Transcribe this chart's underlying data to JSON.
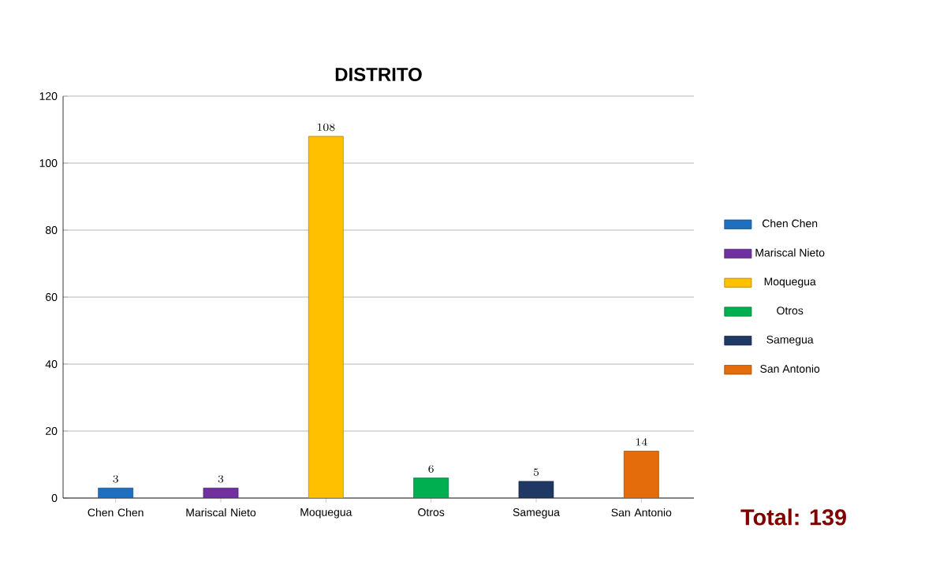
{
  "chart_data": {
    "type": "bar",
    "title": "DISTRITO",
    "categories": [
      "Chen Chen",
      "Mariscal Nieto",
      "Moquegua",
      "Otros",
      "Samegua",
      "San Antonio"
    ],
    "series": [
      {
        "name": "Chen Chen",
        "color": "#1f6fc0",
        "values": [
          3,
          null,
          null,
          null,
          null,
          null
        ]
      },
      {
        "name": "Mariscal Nieto",
        "color": "#7030a0",
        "values": [
          null,
          3,
          null,
          null,
          null,
          null
        ]
      },
      {
        "name": "Moquegua",
        "color": "#ffc000",
        "values": [
          null,
          null,
          108,
          null,
          null,
          null
        ]
      },
      {
        "name": "Otros",
        "color": "#00b050",
        "values": [
          null,
          null,
          null,
          6,
          null,
          null
        ]
      },
      {
        "name": "Samegua",
        "color": "#1f3864",
        "values": [
          null,
          null,
          null,
          null,
          5,
          null
        ]
      },
      {
        "name": "San Antonio",
        "color": "#e46c0a",
        "values": [
          null,
          null,
          null,
          null,
          null,
          14
        ]
      }
    ],
    "ylim": [
      0,
      120
    ],
    "yticks": [
      0,
      20,
      40,
      60,
      80,
      100,
      120
    ],
    "grid": "y",
    "legend": "right",
    "data_labels": true,
    "annotations": [
      "Total: 139"
    ]
  }
}
